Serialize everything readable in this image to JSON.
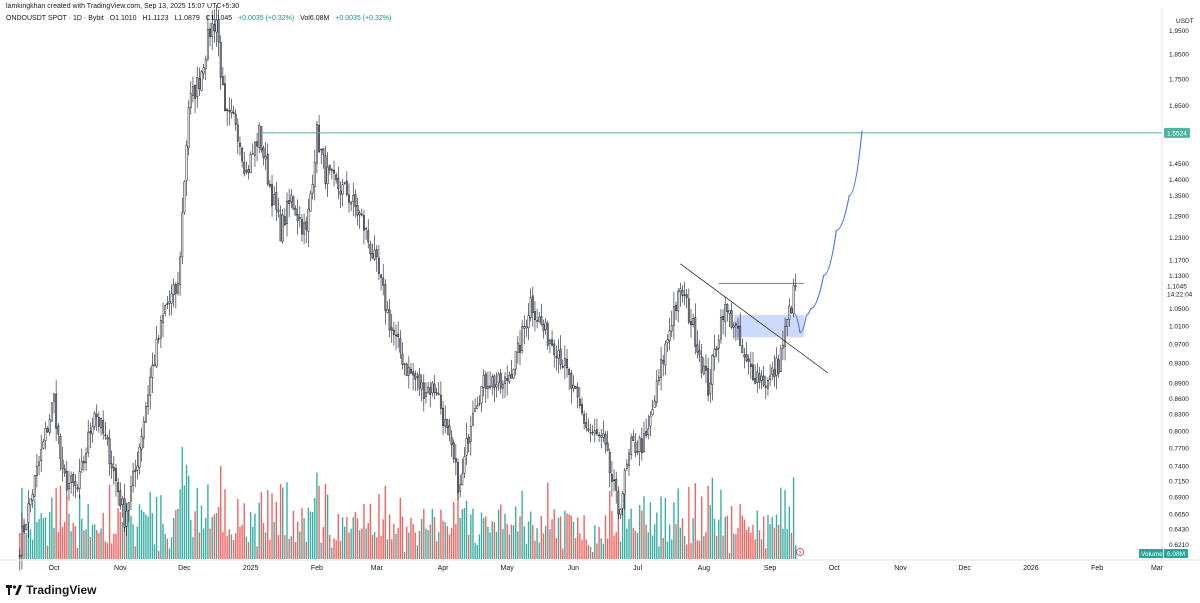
{
  "header": {
    "attribution": "lamkingkhan created with TradingView.com, Sep 13, 2025 15:07 UTC+5:30"
  },
  "ohlc": {
    "symbol": "ONDOUSDT SPOT · 1D · Bybit",
    "open": "O1.1010",
    "high": "H1.1123",
    "low": "L1.0879",
    "close": "C1.1045",
    "change": "+0.0035 (+0.32%)",
    "volume": "Vol6.08M",
    "change2": "+0.0035 (+0.32%)"
  },
  "footer": {
    "brand": "TradingView"
  },
  "colors": {
    "up": "#089981",
    "down": "#f23645",
    "vol_up": "#26a69a",
    "vol_down": "#ef5350",
    "candle_body": "#ffffff",
    "candle_border": "#131722",
    "resistance_line": "#4fb3a0",
    "projection": "#4472f4",
    "zone": "#c5d3fb"
  },
  "chart_data": {
    "type": "candlestick",
    "currency_label": "USDT",
    "y_scale": "log",
    "ylim": [
      0.6,
      2.05
    ],
    "y_ticks": [
      1.95,
      1.85,
      1.75,
      1.65,
      1.45,
      1.4,
      1.35,
      1.29,
      1.23,
      1.17,
      1.13,
      1.05,
      1.01,
      0.97,
      0.93,
      0.89,
      0.86,
      0.83,
      0.8,
      0.77,
      0.74,
      0.715,
      0.69,
      0.665,
      0.643,
      0.621
    ],
    "y_tick_labels": [
      "1.9500",
      "1.8500",
      "1.7500",
      "1.6500",
      "1.4500",
      "1.4000",
      "1.3500",
      "1.2900",
      "1.2300",
      "1.1700",
      "1.1300",
      "1.0500",
      "1.0100",
      "0.9700",
      "0.9300",
      "0.8900",
      "0.8600",
      "0.8300",
      "0.8000",
      "0.7700",
      "0.7400",
      "0.7150",
      "0.6900",
      "0.6650",
      "0.6430",
      "0.6210"
    ],
    "x_ticks": [
      "Oct",
      "Nov",
      "Dec",
      "2025",
      "Feb",
      "Mar",
      "Apr",
      "May",
      "Jun",
      "Jul",
      "Aug",
      "Sep",
      "Oct",
      "Nov",
      "Dec",
      "2026",
      "Feb",
      "Mar"
    ],
    "price_label": {
      "value": 1.1045,
      "text": "1.1045",
      "countdown": "14:22:04"
    },
    "resistance": {
      "value": 1.5524,
      "text": "1.5524"
    },
    "volume_label": {
      "name": "Volume",
      "text": "6.08M"
    },
    "trendline": {
      "from": [
        "2025-07-21",
        1.16
      ],
      "to": [
        "2025-09-28",
        0.91
      ]
    },
    "range_box_top": 1.11,
    "demand_zone": {
      "from": "2025-08-15",
      "to": "2025-09-17",
      "low": 0.985,
      "high": 1.035
    },
    "projection_path": [
      [
        "2025-09-12",
        1.04
      ],
      [
        "2025-09-15",
        0.995
      ],
      [
        "2025-09-18",
        1.035
      ],
      [
        "2025-09-20",
        1.05
      ],
      [
        "2025-09-26",
        1.13
      ],
      [
        "2025-10-02",
        1.25
      ],
      [
        "2025-10-08",
        1.35
      ],
      [
        "2025-10-14",
        1.56
      ]
    ],
    "candles": [
      [
        "2024-09-15",
        0.62
      ],
      [
        "2024-09-25",
        0.76
      ],
      [
        "2024-10-01",
        0.86
      ],
      [
        "2024-10-05",
        0.72
      ],
      [
        "2024-10-12",
        0.7
      ],
      [
        "2024-10-20",
        0.84
      ],
      [
        "2024-10-27",
        0.76
      ],
      [
        "2024-11-03",
        0.66
      ],
      [
        "2024-11-08",
        0.73
      ],
      [
        "2024-11-15",
        0.9
      ],
      [
        "2024-11-22",
        1.05
      ],
      [
        "2024-11-28",
        1.1
      ],
      [
        "2024-12-03",
        1.65
      ],
      [
        "2024-12-08",
        1.75
      ],
      [
        "2024-12-13",
        1.95
      ],
      [
        "2024-12-16",
        2.0
      ],
      [
        "2024-12-20",
        1.6
      ],
      [
        "2024-12-25",
        1.6
      ],
      [
        "2024-12-30",
        1.42
      ],
      [
        "2025-01-05",
        1.55
      ],
      [
        "2025-01-10",
        1.38
      ],
      [
        "2025-01-15",
        1.25
      ],
      [
        "2025-01-20",
        1.34
      ],
      [
        "2025-01-27",
        1.24
      ],
      [
        "2025-02-01",
        1.55
      ],
      [
        "2025-02-05",
        1.42
      ],
      [
        "2025-02-10",
        1.38
      ],
      [
        "2025-02-15",
        1.36
      ],
      [
        "2025-02-22",
        1.28
      ],
      [
        "2025-03-01",
        1.15
      ],
      [
        "2025-03-08",
        1.0
      ],
      [
        "2025-03-15",
        0.92
      ],
      [
        "2025-03-22",
        0.88
      ],
      [
        "2025-03-29",
        0.88
      ],
      [
        "2025-04-05",
        0.76
      ],
      [
        "2025-04-09",
        0.7
      ],
      [
        "2025-04-15",
        0.85
      ],
      [
        "2025-04-22",
        0.9
      ],
      [
        "2025-04-29",
        0.88
      ],
      [
        "2025-05-06",
        0.95
      ],
      [
        "2025-05-12",
        1.07
      ],
      [
        "2025-05-18",
        1.0
      ],
      [
        "2025-05-25",
        0.96
      ],
      [
        "2025-06-01",
        0.87
      ],
      [
        "2025-06-08",
        0.8
      ],
      [
        "2025-06-15",
        0.78
      ],
      [
        "2025-06-22",
        0.67
      ],
      [
        "2025-06-28",
        0.77
      ],
      [
        "2025-07-05",
        0.78
      ],
      [
        "2025-07-12",
        0.92
      ],
      [
        "2025-07-18",
        1.05
      ],
      [
        "2025-07-22",
        1.09
      ],
      [
        "2025-07-28",
        0.99
      ],
      [
        "2025-08-03",
        0.88
      ],
      [
        "2025-08-10",
        1.05
      ],
      [
        "2025-08-15",
        1.02
      ],
      [
        "2025-08-20",
        0.93
      ],
      [
        "2025-08-25",
        0.91
      ],
      [
        "2025-08-31",
        0.89
      ],
      [
        "2025-09-05",
        0.93
      ],
      [
        "2025-09-10",
        1.04
      ],
      [
        "2025-09-13",
        1.1045
      ]
    ]
  }
}
